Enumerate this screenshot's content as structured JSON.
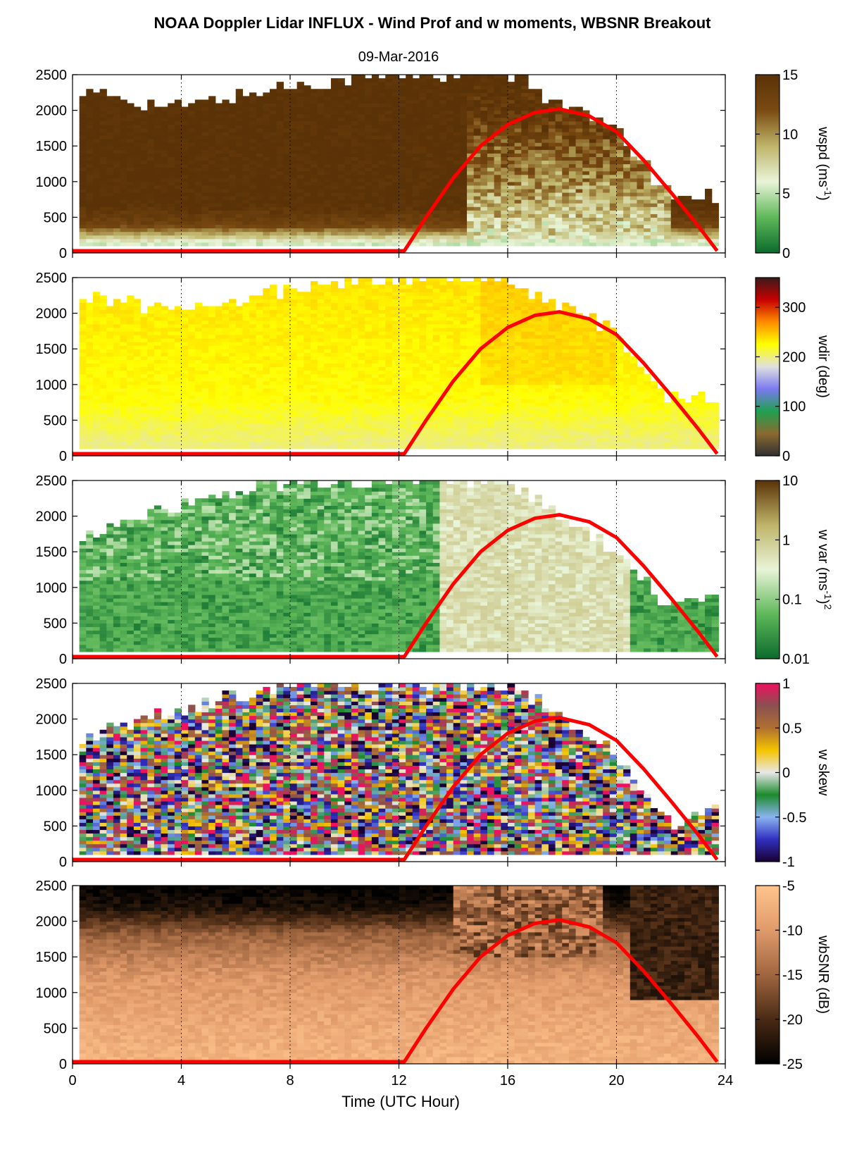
{
  "figure": {
    "title": "NOAA Doppler Lidar INFLUX - Wind Prof and w moments, WBSNR Breakout",
    "subtitle": "09-Mar-2016",
    "xlabel": "Time (UTC Hour)"
  },
  "chart_data": [
    {
      "type": "heatmap",
      "name": "wspd",
      "xlim": [
        0,
        24
      ],
      "ylim": [
        0,
        2500
      ],
      "xticks": [
        "0",
        "4",
        "8",
        "12",
        "16",
        "20",
        "24"
      ],
      "yticks": [
        "0",
        "500",
        "1000",
        "1500",
        "2000",
        "2500"
      ],
      "colorbar": {
        "label_main": "wspd (ms",
        "label_sup": "-1",
        "label_close": ")",
        "ticks": [
          "0",
          "5",
          "10",
          "15"
        ],
        "range": [
          0,
          15
        ],
        "colors": [
          "#0b6b2c",
          "#5fb85a",
          "#e9f4d8",
          "#bfb469",
          "#7a4a12",
          "#5a3207"
        ]
      },
      "mean_profile": [
        [
          0,
          3
        ],
        [
          150,
          6
        ],
        [
          400,
          13
        ],
        [
          700,
          15
        ],
        [
          2000,
          15
        ],
        [
          2500,
          15
        ]
      ],
      "top_height_by_hour": [
        [
          0,
          2250
        ],
        [
          4,
          2050
        ],
        [
          8,
          2350
        ],
        [
          12,
          2500
        ],
        [
          16,
          2500
        ],
        [
          20,
          1700
        ],
        [
          22,
          800
        ],
        [
          24,
          800
        ]
      ],
      "grid": "x dotted",
      "legend": "none"
    },
    {
      "type": "heatmap",
      "name": "wdir",
      "xlim": [
        0,
        24
      ],
      "ylim": [
        0,
        2500
      ],
      "xticks": [
        "0",
        "4",
        "8",
        "12",
        "16",
        "20",
        "24"
      ],
      "yticks": [
        "0",
        "500",
        "1000",
        "1500",
        "2000",
        "2500"
      ],
      "colorbar": {
        "label_main": "wdir (deg)",
        "ticks": [
          "0",
          "100",
          "200",
          "300"
        ],
        "range": [
          0,
          360
        ],
        "colors": [
          "#303030",
          "#8a6a30",
          "#1fa050",
          "#7a7af0",
          "#e0e0e0",
          "#ffff00",
          "#ff8c00",
          "#c80000",
          "#3a1a1a"
        ]
      },
      "mean_profile": [
        [
          0,
          195
        ],
        [
          300,
          205
        ],
        [
          800,
          225
        ],
        [
          2500,
          235
        ]
      ],
      "top_height_by_hour": [
        [
          0,
          2250
        ],
        [
          4,
          2050
        ],
        [
          8,
          2350
        ],
        [
          12,
          2500
        ],
        [
          16,
          2500
        ],
        [
          20,
          1700
        ],
        [
          22,
          800
        ],
        [
          24,
          800
        ]
      ],
      "grid": "x dotted",
      "legend": "none"
    },
    {
      "type": "heatmap",
      "name": "w var",
      "xlim": [
        0,
        24
      ],
      "ylim": [
        0,
        2500
      ],
      "xticks": [
        "0",
        "4",
        "8",
        "12",
        "16",
        "20",
        "24"
      ],
      "yticks": [
        "0",
        "500",
        "1000",
        "1500",
        "2000",
        "2500"
      ],
      "colorbar": {
        "label_main": "w var (ms",
        "label_sup": "-1",
        "label_close": ")",
        "label_sup2": "2",
        "ticks": [
          "0.01",
          "0.1",
          "1",
          "10"
        ],
        "range": [
          0.01,
          10
        ],
        "scale": "log",
        "colors": [
          "#0b6b2c",
          "#5fb85a",
          "#e9f4d8",
          "#bfb469",
          "#5a3207"
        ]
      },
      "mean_profile_by_period": {
        "night": 0.02,
        "day": 0.5
      },
      "top_height_by_hour": [
        [
          0,
          1700
        ],
        [
          4,
          2150
        ],
        [
          8,
          2500
        ],
        [
          12,
          2500
        ],
        [
          16,
          2500
        ],
        [
          20,
          1500
        ],
        [
          22,
          700
        ],
        [
          24,
          900
        ]
      ],
      "grid": "x dotted",
      "legend": "none"
    },
    {
      "type": "heatmap",
      "name": "w skew",
      "xlim": [
        0,
        24
      ],
      "ylim": [
        0,
        2500
      ],
      "xticks": [
        "0",
        "4",
        "8",
        "12",
        "16",
        "20",
        "24"
      ],
      "yticks": [
        "0",
        "500",
        "1000",
        "1500",
        "2000",
        "2500"
      ],
      "colorbar": {
        "label_main": "w skew",
        "ticks": [
          "-1",
          "-0.5",
          "0",
          "0.5",
          "1"
        ],
        "range": [
          -1,
          1
        ],
        "colors": [
          "#1a0033",
          "#3030c0",
          "#8ab4f0",
          "#1c8a2c",
          "#e8e8e8",
          "#f4c400",
          "#b07030",
          "#8a5050",
          "#f01060"
        ]
      },
      "top_height_by_hour": [
        [
          0,
          1700
        ],
        [
          4,
          2150
        ],
        [
          8,
          2500
        ],
        [
          12,
          2500
        ],
        [
          16,
          2500
        ],
        [
          20,
          1500
        ],
        [
          22,
          500
        ],
        [
          24,
          900
        ]
      ],
      "grid": "x dotted",
      "legend": "none"
    },
    {
      "type": "heatmap",
      "name": "wbSNR",
      "xlim": [
        0,
        24
      ],
      "ylim": [
        0,
        2500
      ],
      "xticks": [
        "0",
        "4",
        "8",
        "12",
        "16",
        "20",
        "24"
      ],
      "yticks": [
        "0",
        "500",
        "1000",
        "1500",
        "2000",
        "2500"
      ],
      "colorbar": {
        "label_main": "wbSNR (dB)",
        "ticks": [
          "-25",
          "-20",
          "-15",
          "-10",
          "-5"
        ],
        "range": [
          -25,
          -5
        ],
        "colors": [
          "#000000",
          "#4a2a14",
          "#a06640",
          "#e09a6a",
          "#ffc48e"
        ]
      },
      "mean_profile": [
        [
          0,
          -7
        ],
        [
          500,
          -8
        ],
        [
          1200,
          -10
        ],
        [
          1800,
          -15
        ],
        [
          2200,
          -23
        ],
        [
          2500,
          -25
        ]
      ],
      "grid": "x dotted",
      "legend": "none"
    }
  ],
  "overlay_line": {
    "color": "#ff0000",
    "description_points_x": [
      0,
      12.2,
      13,
      14,
      15,
      16,
      17,
      17.9,
      19,
      20,
      21,
      22,
      23,
      23.7
    ],
    "description_points_y": [
      30,
      30,
      500,
      1050,
      1500,
      1800,
      1970,
      2020,
      1920,
      1700,
      1300,
      850,
      380,
      30
    ]
  }
}
